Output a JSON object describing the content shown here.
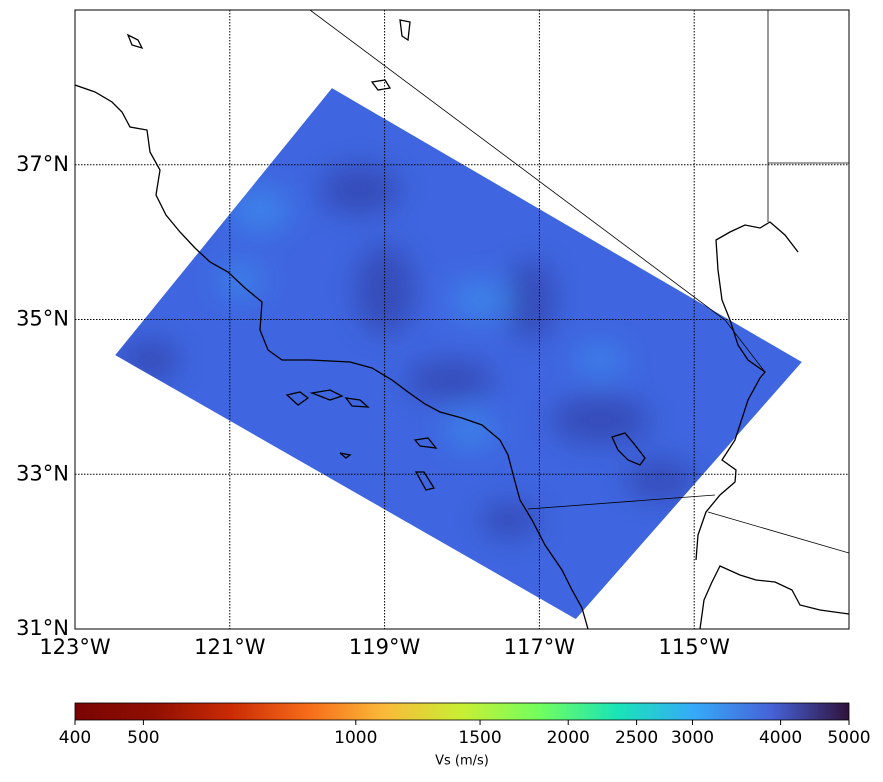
{
  "chart_data": {
    "type": "map",
    "xlim": [
      -123,
      -113
    ],
    "ylim": [
      31,
      39
    ],
    "xticks": [
      {
        "value": -123,
        "label": "123°W"
      },
      {
        "value": -121,
        "label": "121°W"
      },
      {
        "value": -119,
        "label": "119°W"
      },
      {
        "value": -117,
        "label": "117°W"
      },
      {
        "value": -115,
        "label": "115°W"
      }
    ],
    "yticks": [
      {
        "value": 31,
        "label": "31°N"
      },
      {
        "value": 33,
        "label": "33°N"
      },
      {
        "value": 35,
        "label": "35°N"
      },
      {
        "value": 37,
        "label": "37°N"
      }
    ],
    "grid": true,
    "model_region": {
      "lon": [
        -122.48,
        -119.68,
        -113.61,
        -116.53
      ],
      "lat": [
        34.54,
        37.99,
        34.45,
        31.13
      ],
      "color": "#3f66e0"
    },
    "colorbar": {
      "label": "Vs (m/s)",
      "scale": "log",
      "lim": [
        400,
        5000
      ],
      "ticks": [
        400,
        500,
        1000,
        1500,
        2000,
        2500,
        3000,
        4000,
        5000
      ],
      "colors": [
        "#7a0403",
        "#8f0f01",
        "#ca2a04",
        "#f66b19",
        "#faba39",
        "#c8ef34",
        "#72fe5e",
        "#1ae4b6",
        "#36aaf9",
        "#4662d7",
        "#30123b"
      ]
    }
  }
}
